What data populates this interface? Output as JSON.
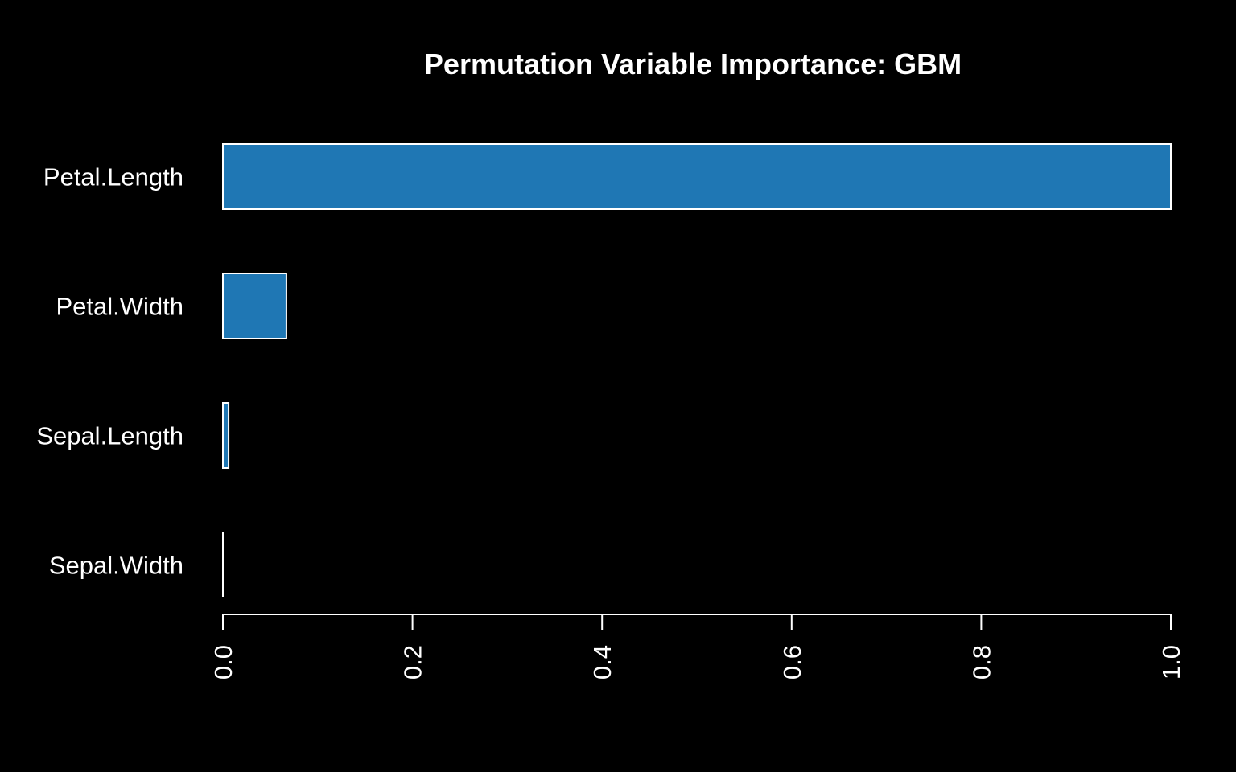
{
  "chart_data": {
    "type": "bar",
    "orientation": "horizontal",
    "title": "Permutation Variable Importance: GBM",
    "xlabel": "",
    "ylabel": "",
    "categories": [
      "Petal.Length",
      "Petal.Width",
      "Sepal.Length",
      "Sepal.Width"
    ],
    "values": [
      1.0,
      0.067,
      0.006,
      0.0
    ],
    "xlim": [
      0,
      1
    ],
    "x_ticks": [
      0.0,
      0.2,
      0.4,
      0.6,
      0.8,
      1.0
    ],
    "x_tick_labels": [
      "0.0",
      "0.2",
      "0.4",
      "0.6",
      "0.8",
      "1.0"
    ],
    "grid": false,
    "legend": "none",
    "colors": {
      "background": "#000000",
      "bar_fill": "#1f77b4",
      "bar_stroke": "#ffffff",
      "text": "#ffffff",
      "axis": "#ffffff"
    }
  }
}
